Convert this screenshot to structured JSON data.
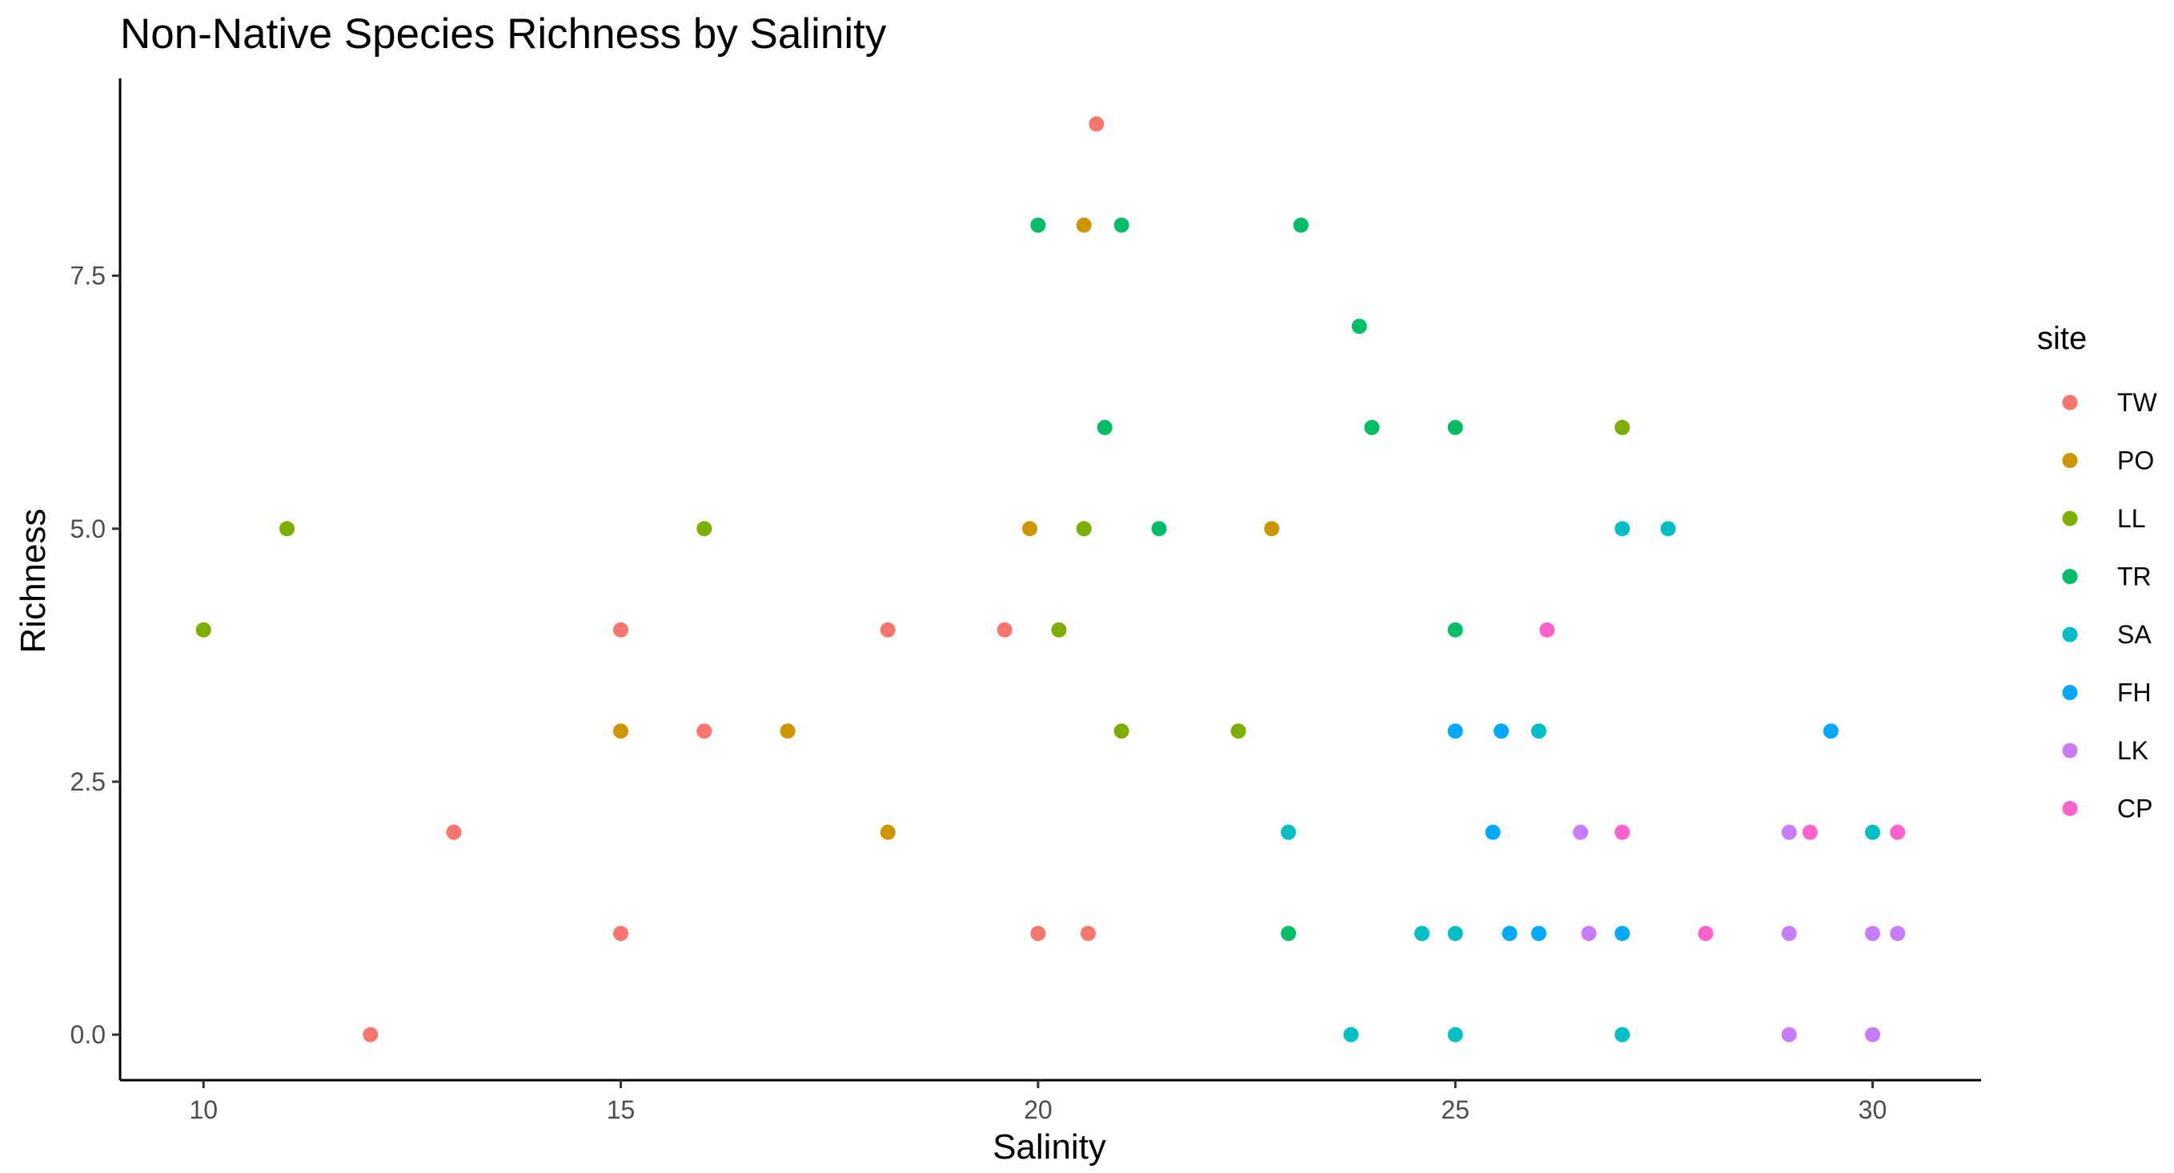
{
  "chart_data": {
    "type": "scatter",
    "title": "Non-Native Species Richness by Salinity",
    "xlabel": "Salinity",
    "ylabel": "Richness",
    "xlim": [
      9,
      31.3
    ],
    "ylim": [
      -0.45,
      9.45
    ],
    "xticks": [
      10,
      15,
      20,
      25,
      30
    ],
    "xtick_labels": [
      "10",
      "15",
      "20",
      "25",
      "30"
    ],
    "yticks": [
      0,
      2.5,
      5,
      7.5
    ],
    "ytick_labels": [
      "0.0",
      "2.5",
      "5.0",
      "7.5"
    ],
    "grid": false,
    "legend": {
      "title": "site",
      "placement": "right"
    },
    "series": [
      {
        "name": "TW",
        "color": "#F8766D",
        "points": [
          [
            12,
            0
          ],
          [
            13,
            2
          ],
          [
            15,
            4
          ],
          [
            15,
            1
          ],
          [
            16,
            3
          ],
          [
            18.2,
            4
          ],
          [
            19.6,
            4
          ],
          [
            20,
            1
          ],
          [
            20.6,
            1
          ],
          [
            20.7,
            9
          ]
        ]
      },
      {
        "name": "PO",
        "color": "#CD9600",
        "points": [
          [
            15,
            3
          ],
          [
            17,
            3
          ],
          [
            18.2,
            2
          ],
          [
            19.9,
            5
          ],
          [
            20.55,
            8
          ],
          [
            22.8,
            5
          ]
        ]
      },
      {
        "name": "LL",
        "color": "#7CAE00",
        "points": [
          [
            10,
            4
          ],
          [
            11,
            5
          ],
          [
            16,
            5
          ],
          [
            20.25,
            4
          ],
          [
            20.55,
            5
          ],
          [
            21,
            3
          ],
          [
            22.4,
            3
          ],
          [
            27,
            6
          ]
        ]
      },
      {
        "name": "TR",
        "color": "#00BE67",
        "points": [
          [
            20,
            8
          ],
          [
            20.8,
            6
          ],
          [
            21,
            8
          ],
          [
            21.45,
            5
          ],
          [
            23,
            1
          ],
          [
            23.15,
            8
          ],
          [
            23.85,
            7
          ],
          [
            24,
            6
          ],
          [
            25,
            6
          ],
          [
            25,
            4
          ]
        ]
      },
      {
        "name": "SA",
        "color": "#00BFC4",
        "points": [
          [
            23,
            2
          ],
          [
            23.75,
            0
          ],
          [
            24.6,
            1
          ],
          [
            25,
            1
          ],
          [
            25,
            0
          ],
          [
            26,
            3
          ],
          [
            27,
            5
          ],
          [
            27,
            0
          ],
          [
            27.55,
            5
          ],
          [
            30,
            2
          ]
        ]
      },
      {
        "name": "FH",
        "color": "#00A9FF",
        "points": [
          [
            25,
            3
          ],
          [
            25.45,
            2
          ],
          [
            25.55,
            3
          ],
          [
            25.65,
            1
          ],
          [
            26,
            1
          ],
          [
            27,
            1
          ],
          [
            29.5,
            3
          ]
        ]
      },
      {
        "name": "LK",
        "color": "#C77CFF",
        "points": [
          [
            26.5,
            2
          ],
          [
            26.6,
            1
          ],
          [
            29,
            2
          ],
          [
            29,
            1
          ],
          [
            29,
            0
          ],
          [
            30,
            1
          ],
          [
            30,
            0
          ],
          [
            30.3,
            1
          ]
        ]
      },
      {
        "name": "CP",
        "color": "#FF61CC",
        "points": [
          [
            26.1,
            4
          ],
          [
            27,
            2
          ],
          [
            28,
            1
          ],
          [
            29.25,
            2
          ],
          [
            30.3,
            2
          ]
        ]
      }
    ]
  }
}
